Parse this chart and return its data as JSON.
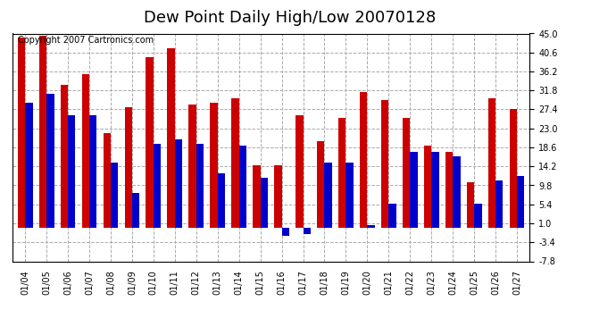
{
  "title": "Dew Point Daily High/Low 20070128",
  "copyright": "Copyright 2007 Cartronics.com",
  "dates": [
    "01/04",
    "01/05",
    "01/06",
    "01/07",
    "01/08",
    "01/09",
    "01/10",
    "01/11",
    "01/12",
    "01/13",
    "01/14",
    "01/15",
    "01/16",
    "01/17",
    "01/18",
    "01/19",
    "01/20",
    "01/21",
    "01/22",
    "01/23",
    "01/24",
    "01/25",
    "01/26",
    "01/27"
  ],
  "highs": [
    44.0,
    44.5,
    33.0,
    35.5,
    22.0,
    28.0,
    39.5,
    41.5,
    28.5,
    29.0,
    30.0,
    14.5,
    14.5,
    26.0,
    20.0,
    25.5,
    31.5,
    29.5,
    25.5,
    19.0,
    17.5,
    10.5,
    30.0,
    27.5
  ],
  "lows": [
    29.0,
    31.0,
    26.0,
    26.0,
    15.0,
    8.0,
    19.5,
    20.5,
    19.5,
    12.5,
    19.0,
    11.5,
    -2.0,
    -1.5,
    15.0,
    15.0,
    0.5,
    5.5,
    17.5,
    17.5,
    16.5,
    5.5,
    11.0,
    12.0
  ],
  "high_color": "#cc0000",
  "low_color": "#0000cc",
  "background_color": "#ffffff",
  "plot_bg_color": "#ffffff",
  "grid_color": "#aaaaaa",
  "ymin": -7.8,
  "ymax": 45.0,
  "yticks": [
    45.0,
    40.6,
    36.2,
    31.8,
    27.4,
    23.0,
    18.6,
    14.2,
    9.8,
    5.4,
    1.0,
    -3.4,
    -7.8
  ],
  "title_fontsize": 13,
  "copyright_fontsize": 7,
  "tick_fontsize": 7,
  "bar_width": 0.35
}
